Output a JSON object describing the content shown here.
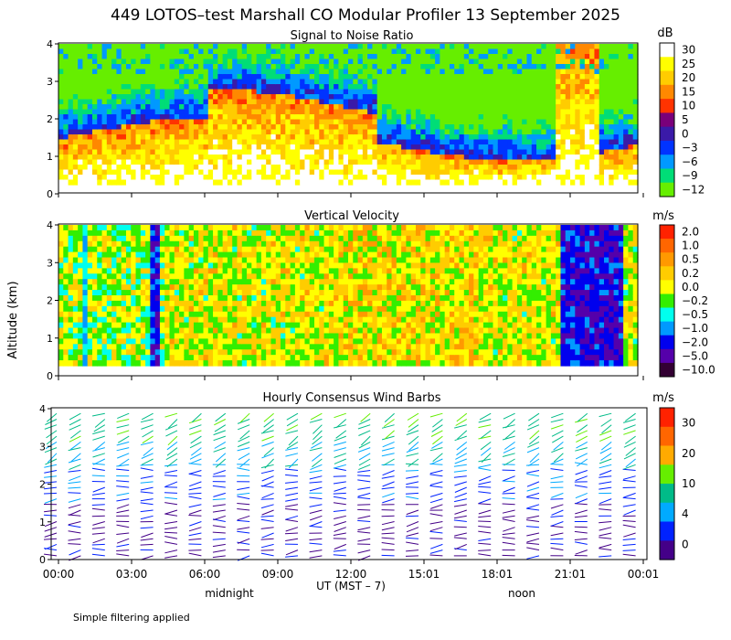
{
  "title": "449 LOTOS–test Marshall CO Modular Profiler 13 September 2025",
  "ylabel": "Altitude (km)",
  "xlabel": "UT  (MST – 7)",
  "x_ticks": [
    "00:00",
    "03:00",
    "06:00",
    "09:00",
    "12:00",
    "15:01",
    "18:01",
    "21:01",
    "00:01"
  ],
  "local_marks": [
    "midnight",
    "noon"
  ],
  "footnote": "Simple filtering applied",
  "chart_data": [
    {
      "type": "heatmap",
      "title": "Signal to Noise Ratio",
      "unit": "dB",
      "ylim": [
        0,
        4
      ],
      "yticks": [
        "0",
        "1",
        "2",
        "3",
        "4"
      ],
      "colorbar": {
        "labels": [
          "30",
          "25",
          "20",
          "15",
          "10",
          "5",
          "0",
          "−3",
          "−6",
          "−9",
          "−12"
        ],
        "colors": [
          "#ffffff",
          "#ffff00",
          "#ffcc00",
          "#ff8800",
          "#ff3300",
          "#7a007a",
          "#3a1aa8",
          "#0033ff",
          "#0099ff",
          "#00dd77",
          "#66ee00"
        ]
      }
    },
    {
      "type": "heatmap",
      "title": "Vertical Velocity",
      "unit": "m/s",
      "ylim": [
        0,
        4
      ],
      "yticks": [
        "0",
        "1",
        "2",
        "3",
        "4"
      ],
      "colorbar": {
        "labels": [
          "2.0",
          "1.0",
          "0.5",
          "0.2",
          "0.0",
          "−0.2",
          "−0.5",
          "−1.0",
          "−2.0",
          "−5.0",
          "−10.0"
        ],
        "colors": [
          "#ff2200",
          "#ff6600",
          "#ff9900",
          "#ffcc00",
          "#ffff00",
          "#33ee00",
          "#00ffee",
          "#0099ff",
          "#0000ee",
          "#5500aa",
          "#330033"
        ]
      }
    },
    {
      "type": "wind_barbs",
      "title": "Hourly Consensus Wind Barbs",
      "unit": "m/s",
      "ylim": [
        0,
        4
      ],
      "yticks": [
        "0",
        "1",
        "2",
        "3",
        "4"
      ],
      "colorbar": {
        "labels": [
          "30",
          "20",
          "10",
          "4",
          "0"
        ],
        "colors": [
          "#ff2200",
          "#ff6600",
          "#ffaa00",
          "#66ee00",
          "#00bb88",
          "#00aaff",
          "#0022ff",
          "#440088"
        ]
      }
    }
  ]
}
